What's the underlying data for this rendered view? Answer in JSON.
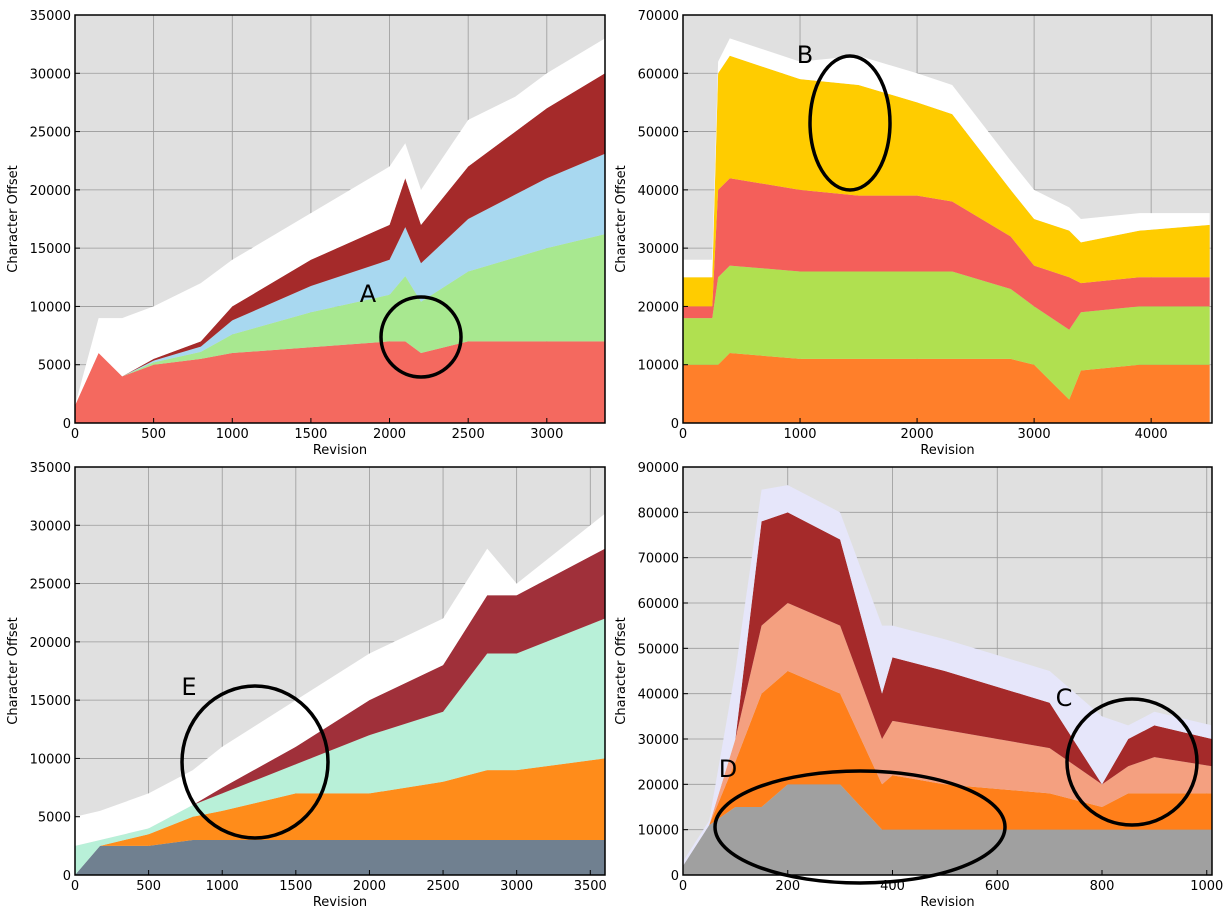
{
  "chart_data": [
    {
      "type": "area",
      "stacked": true,
      "xlabel": "Revision",
      "ylabel": "Character Offset",
      "xlim": [
        0,
        3370
      ],
      "xticks": [
        0,
        500,
        1000,
        1500,
        2000,
        2500,
        3000
      ],
      "ylim": [
        0,
        35000
      ],
      "yticks": [
        0,
        5000,
        10000,
        15000,
        20000,
        25000,
        30000,
        35000
      ],
      "grid": true,
      "x": [
        0,
        150,
        300,
        500,
        800,
        1000,
        1500,
        2000,
        2100,
        2200,
        2500,
        2800,
        3000,
        3370
      ],
      "series": [
        {
          "color": "#f4695f",
          "values": [
            1500,
            6000,
            4000,
            5000,
            5500,
            6000,
            6500,
            7000,
            7000,
            6000,
            7000,
            7000,
            7000,
            7000
          ]
        },
        {
          "color": "#a8e890",
          "values": [
            0,
            0,
            0,
            200,
            600,
            1600,
            3000,
            4000,
            5600,
            4400,
            6000,
            7200,
            8000,
            9200
          ]
        },
        {
          "color": "#a8d8f0",
          "values": [
            0,
            0,
            0,
            150,
            450,
            1200,
            2250,
            3000,
            4200,
            3300,
            4500,
            5400,
            6000,
            6900
          ]
        },
        {
          "color": "#a52a2a",
          "values": [
            0,
            0,
            0,
            150,
            450,
            1200,
            2250,
            3000,
            4200,
            3300,
            4500,
            5400,
            6000,
            6900
          ]
        },
        {
          "color": "#ffffff",
          "values": [
            0,
            3000,
            5000,
            4500,
            5000,
            4000,
            4000,
            5000,
            3000,
            3000,
            4000,
            3000,
            3000,
            3000
          ]
        }
      ],
      "annotations": [
        "A"
      ]
    },
    {
      "type": "area",
      "stacked": true,
      "xlabel": "Revision",
      "ylabel": "Character Offset",
      "xlim": [
        0,
        4520
      ],
      "xticks": [
        0,
        1000,
        2000,
        3000,
        4000
      ],
      "ylim": [
        0,
        70000
      ],
      "yticks": [
        0,
        10000,
        20000,
        30000,
        40000,
        50000,
        60000,
        70000
      ],
      "grid": true,
      "x": [
        0,
        250,
        300,
        400,
        1000,
        1500,
        2000,
        2300,
        2800,
        3000,
        3300,
        3400,
        3900,
        4500
      ],
      "series": [
        {
          "color": "#ff7f2a",
          "values": [
            10000,
            10000,
            10000,
            12000,
            11000,
            11000,
            11000,
            11000,
            11000,
            10000,
            4000,
            9000,
            10000,
            10000
          ]
        },
        {
          "color": "#b0e050",
          "values": [
            8000,
            8000,
            15000,
            15000,
            15000,
            15000,
            15000,
            15000,
            12000,
            10000,
            12000,
            10000,
            10000,
            10000
          ]
        },
        {
          "color": "#f45f5a",
          "values": [
            2000,
            2000,
            15000,
            15000,
            14000,
            13000,
            13000,
            12000,
            9000,
            7000,
            9000,
            5000,
            5000,
            5000
          ]
        },
        {
          "color": "#ffcc00",
          "values": [
            5000,
            5000,
            20000,
            21000,
            19000,
            19000,
            16000,
            15000,
            8000,
            8000,
            8000,
            7000,
            8000,
            9000
          ]
        },
        {
          "color": "#ffffff",
          "values": [
            3000,
            3000,
            2000,
            3000,
            3000,
            5000,
            5000,
            5000,
            5000,
            5000,
            4000,
            4000,
            3000,
            2000
          ]
        }
      ],
      "annotations": [
        "B"
      ]
    },
    {
      "type": "area",
      "stacked": true,
      "xlabel": "Revision",
      "ylabel": "Character Offset",
      "xlim": [
        0,
        3600
      ],
      "xticks": [
        0,
        500,
        1000,
        1500,
        2000,
        2500,
        3000,
        3500
      ],
      "ylim": [
        0,
        35000
      ],
      "yticks": [
        0,
        5000,
        10000,
        15000,
        20000,
        25000,
        30000,
        35000
      ],
      "grid": true,
      "x": [
        0,
        170,
        500,
        800,
        1000,
        1500,
        2000,
        2500,
        2800,
        3000,
        3600
      ],
      "series": [
        {
          "color": "#708090",
          "values": [
            0,
            2500,
            2500,
            3000,
            3000,
            3000,
            3000,
            3000,
            3000,
            3000,
            3000
          ]
        },
        {
          "color": "#ff8c1a",
          "values": [
            0,
            0,
            1000,
            2000,
            2500,
            4000,
            4000,
            5000,
            6000,
            6000,
            7000
          ]
        },
        {
          "color": "#b8f0d8",
          "values": [
            2500,
            500,
            500,
            1000,
            1500,
            2500,
            5000,
            6000,
            10000,
            10000,
            12000
          ]
        },
        {
          "color": "#a0303a",
          "values": [
            0,
            0,
            0,
            0,
            500,
            1500,
            3000,
            4000,
            5000,
            5000,
            6000
          ]
        },
        {
          "color": "#ffffff",
          "values": [
            2500,
            2500,
            3000,
            3000,
            3500,
            4000,
            4000,
            4000,
            4000,
            1000,
            3000
          ]
        }
      ],
      "annotations": [
        "E"
      ]
    },
    {
      "type": "area",
      "stacked": true,
      "xlabel": "Revision",
      "ylabel": "Character Offset",
      "xlim": [
        0,
        1010
      ],
      "xticks": [
        0,
        200,
        400,
        600,
        800,
        1000
      ],
      "ylim": [
        0,
        90000
      ],
      "yticks": [
        0,
        10000,
        20000,
        30000,
        40000,
        50000,
        60000,
        70000,
        80000,
        90000
      ],
      "grid": true,
      "x": [
        0,
        50,
        100,
        150,
        200,
        300,
        380,
        400,
        500,
        700,
        800,
        850,
        900,
        1010
      ],
      "series": [
        {
          "color": "#a0a0a0",
          "values": [
            2000,
            11000,
            15000,
            15000,
            20000,
            20000,
            10000,
            10000,
            10000,
            10000,
            10000,
            10000,
            10000,
            10000
          ]
        },
        {
          "color": "#ff7f1a",
          "values": [
            0,
            0,
            10000,
            25000,
            25000,
            20000,
            10000,
            12000,
            10000,
            8000,
            5000,
            8000,
            8000,
            8000
          ]
        },
        {
          "color": "#f4a080",
          "values": [
            0,
            0,
            5000,
            15000,
            15000,
            15000,
            10000,
            12000,
            12000,
            10000,
            5000,
            6000,
            8000,
            6000
          ]
        },
        {
          "color": "#a52a2a",
          "values": [
            0,
            0,
            0,
            23000,
            20000,
            19000,
            10000,
            14000,
            13000,
            10000,
            0,
            6000,
            7000,
            6000
          ]
        },
        {
          "color": "#e6e6fa",
          "values": [
            1000,
            1000,
            15000,
            7000,
            6000,
            6000,
            15000,
            7000,
            7000,
            7000,
            15000,
            3000,
            3000,
            3000
          ]
        }
      ],
      "annotations": [
        "C",
        "D"
      ]
    }
  ]
}
